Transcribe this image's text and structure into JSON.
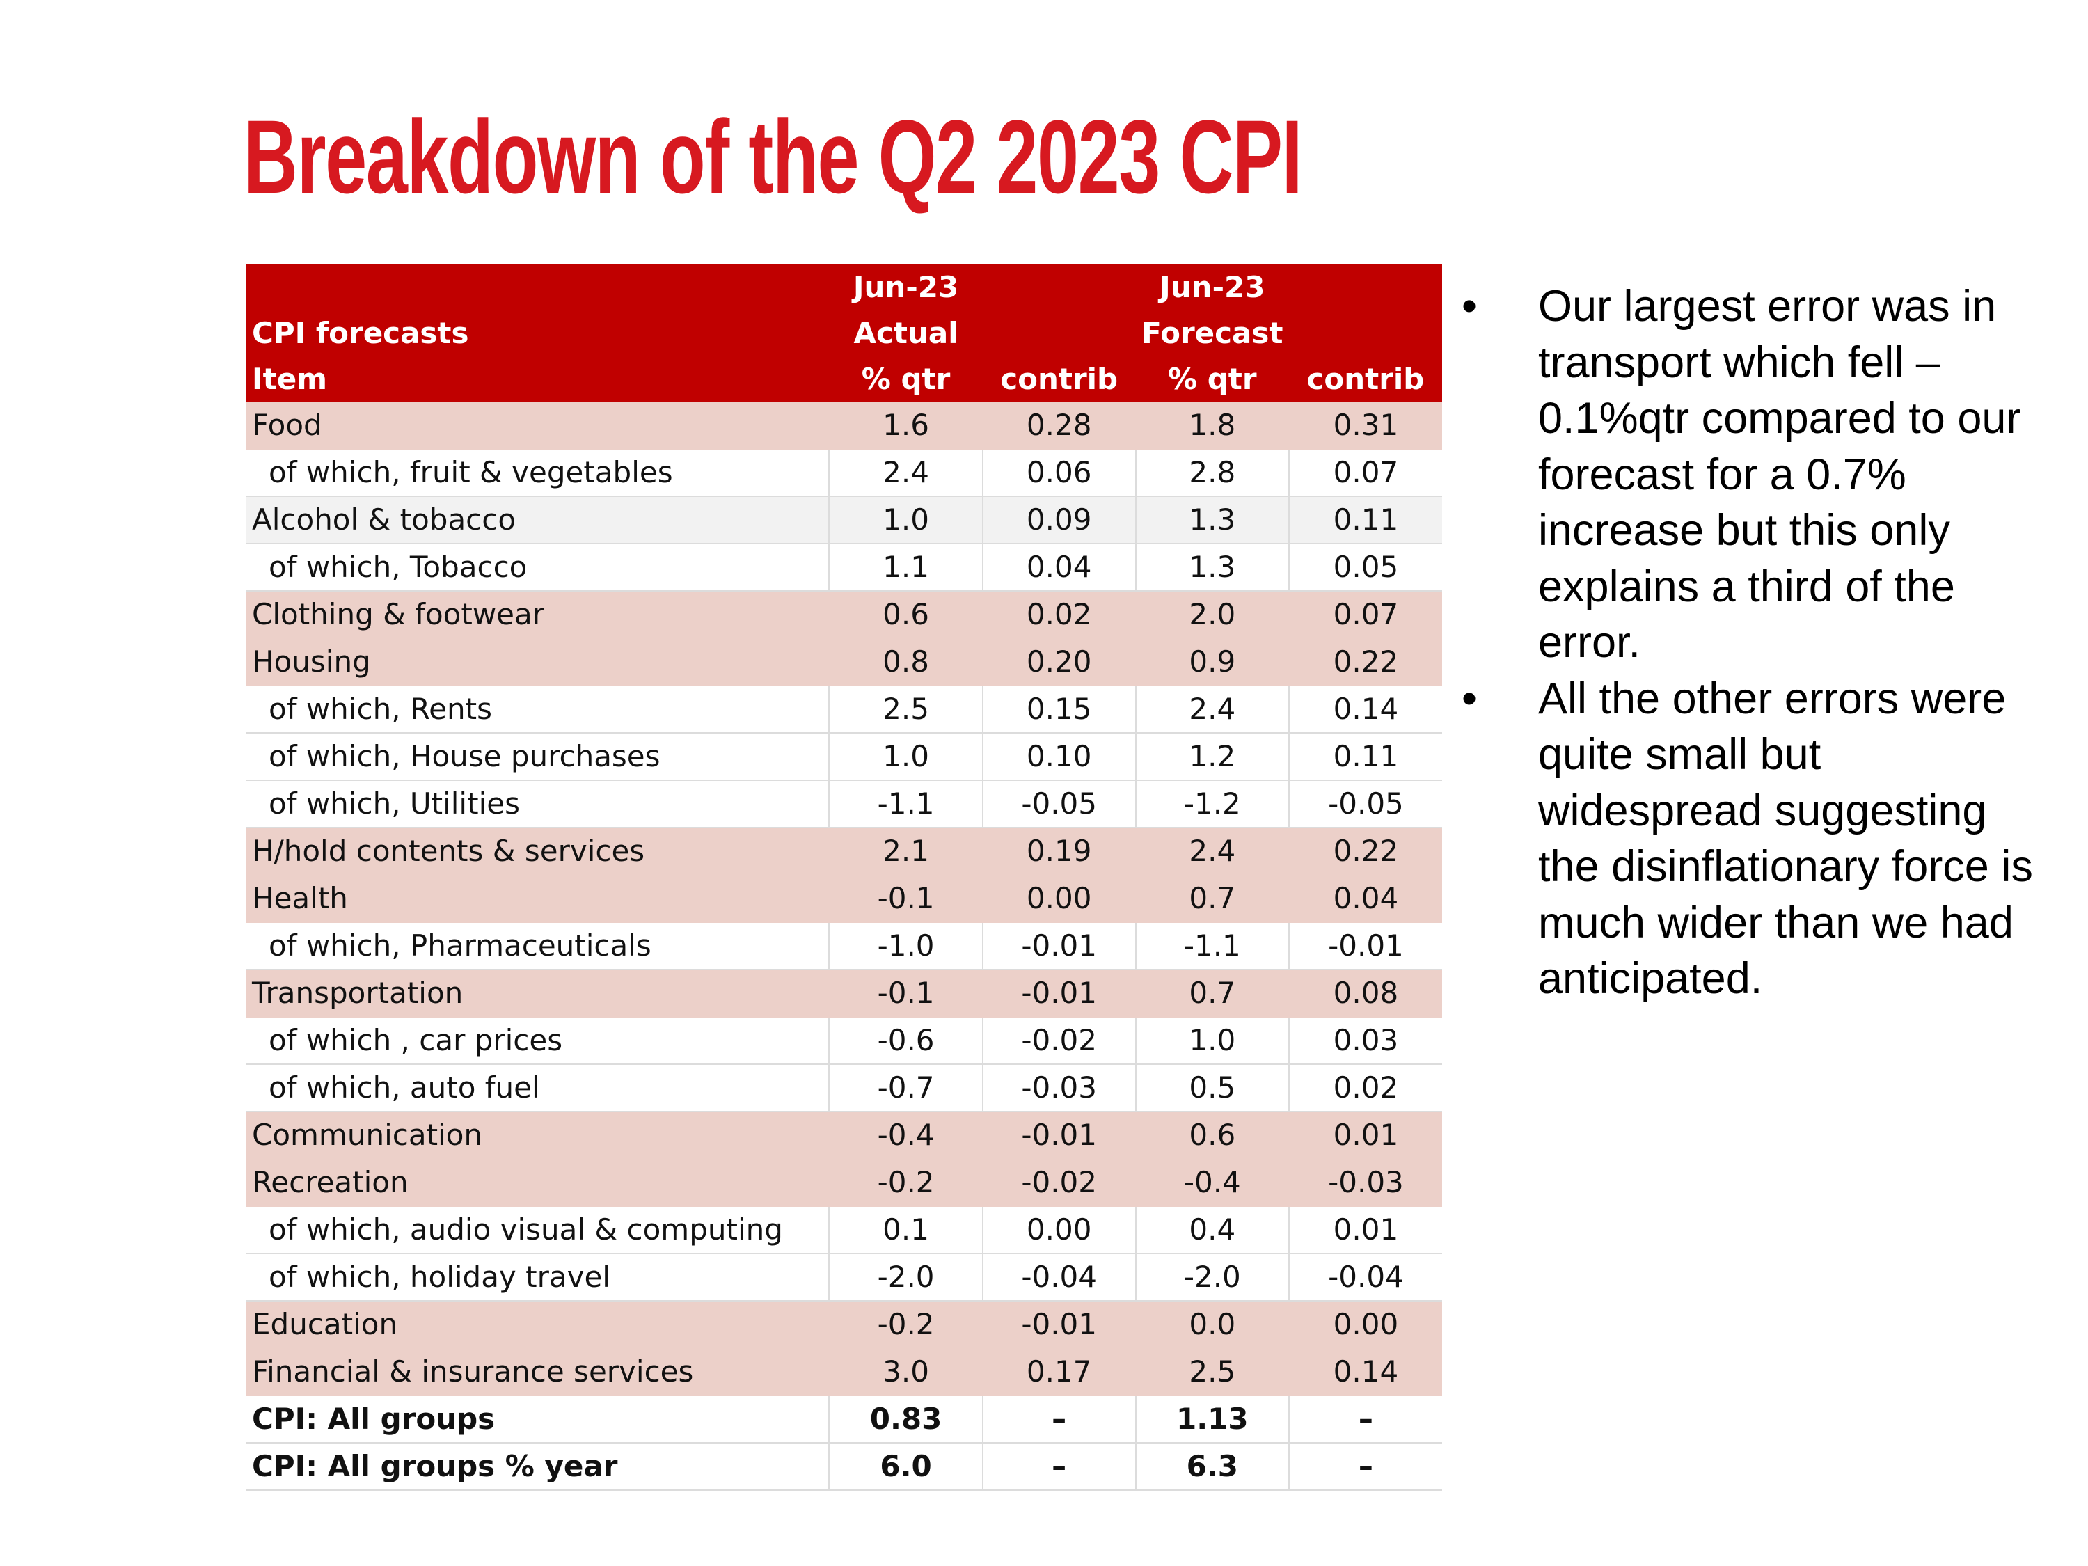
{
  "title": "Breakdown of the Q2 2023 CPI",
  "table": {
    "header": {
      "row1": [
        "",
        "Jun-23",
        "",
        "Jun-23",
        ""
      ],
      "row2": [
        "CPI forecasts",
        "Actual",
        "",
        "Forecast",
        ""
      ],
      "row3": [
        "Item",
        "% qtr",
        "contrib",
        "% qtr",
        "contrib"
      ]
    },
    "rows": [
      {
        "item": "Food",
        "actual": "1.6",
        "actual_contrib": "0.28",
        "forecast": "1.8",
        "forecast_contrib": "0.31"
      },
      {
        "item": "of which, fruit & vegetables",
        "actual": "2.4",
        "actual_contrib": "0.06",
        "forecast": "2.8",
        "forecast_contrib": "0.07"
      },
      {
        "item": "Alcohol & tobacco",
        "actual": "1.0",
        "actual_contrib": "0.09",
        "forecast": "1.3",
        "forecast_contrib": "0.11"
      },
      {
        "item": "of which, Tobacco",
        "actual": "1.1",
        "actual_contrib": "0.04",
        "forecast": "1.3",
        "forecast_contrib": "0.05"
      },
      {
        "item": "Clothing & footwear",
        "actual": "0.6",
        "actual_contrib": "0.02",
        "forecast": "2.0",
        "forecast_contrib": "0.07"
      },
      {
        "item": "Housing",
        "actual": "0.8",
        "actual_contrib": "0.20",
        "forecast": "0.9",
        "forecast_contrib": "0.22"
      },
      {
        "item": "of which, Rents",
        "actual": "2.5",
        "actual_contrib": "0.15",
        "forecast": "2.4",
        "forecast_contrib": "0.14"
      },
      {
        "item": "of which, House purchases",
        "actual": "1.0",
        "actual_contrib": "0.10",
        "forecast": "1.2",
        "forecast_contrib": "0.11"
      },
      {
        "item": "of which, Utilities",
        "actual": "-1.1",
        "actual_contrib": "-0.05",
        "forecast": "-1.2",
        "forecast_contrib": "-0.05"
      },
      {
        "item": "H/hold contents & services",
        "actual": "2.1",
        "actual_contrib": "0.19",
        "forecast": "2.4",
        "forecast_contrib": "0.22"
      },
      {
        "item": "Health",
        "actual": "-0.1",
        "actual_contrib": "0.00",
        "forecast": "0.7",
        "forecast_contrib": "0.04"
      },
      {
        "item": "of which, Pharmaceuticals",
        "actual": "-1.0",
        "actual_contrib": "-0.01",
        "forecast": "-1.1",
        "forecast_contrib": "-0.01"
      },
      {
        "item": "Transportation",
        "actual": "-0.1",
        "actual_contrib": "-0.01",
        "forecast": "0.7",
        "forecast_contrib": "0.08"
      },
      {
        "item": "of which , car prices",
        "actual": "-0.6",
        "actual_contrib": "-0.02",
        "forecast": "1.0",
        "forecast_contrib": "0.03"
      },
      {
        "item": "of which, auto fuel",
        "actual": "-0.7",
        "actual_contrib": "-0.03",
        "forecast": "0.5",
        "forecast_contrib": "0.02"
      },
      {
        "item": "Communication",
        "actual": "-0.4",
        "actual_contrib": "-0.01",
        "forecast": "0.6",
        "forecast_contrib": "0.01"
      },
      {
        "item": "Recreation",
        "actual": "-0.2",
        "actual_contrib": "-0.02",
        "forecast": "-0.4",
        "forecast_contrib": "-0.03"
      },
      {
        "item": "of which, audio visual & computing",
        "actual": "0.1",
        "actual_contrib": "0.00",
        "forecast": "0.4",
        "forecast_contrib": "0.01"
      },
      {
        "item": "of which, holiday travel",
        "actual": "-2.0",
        "actual_contrib": "-0.04",
        "forecast": "-2.0",
        "forecast_contrib": "-0.04"
      },
      {
        "item": "Education",
        "actual": "-0.2",
        "actual_contrib": "-0.01",
        "forecast": "0.0",
        "forecast_contrib": "0.00"
      },
      {
        "item": "Financial & insurance services",
        "actual": "3.0",
        "actual_contrib": "0.17",
        "forecast": "2.5",
        "forecast_contrib": "0.14"
      },
      {
        "item": "CPI: All groups",
        "actual": "0.83",
        "actual_contrib": "–",
        "forecast": "1.13",
        "forecast_contrib": "–"
      },
      {
        "item": "CPI: All groups % year",
        "actual": "6.0",
        "actual_contrib": "–",
        "forecast": "6.3",
        "forecast_contrib": "–"
      }
    ]
  },
  "bullets": {
    "marker": "•",
    "items": [
      "Our largest error was in transport which fell – 0.1%qtr compared to our forecast for a 0.7% increase but this only explains a third of the error.",
      "All the other errors were quite small but widespread suggesting the disinflationary force is much wider than we had anticipated."
    ]
  },
  "colors": {
    "title": "#d71920",
    "header_bg": "#c00000",
    "group_row_bg": "#ecd0c9",
    "alt_row_bg": "#f2f2f2"
  }
}
